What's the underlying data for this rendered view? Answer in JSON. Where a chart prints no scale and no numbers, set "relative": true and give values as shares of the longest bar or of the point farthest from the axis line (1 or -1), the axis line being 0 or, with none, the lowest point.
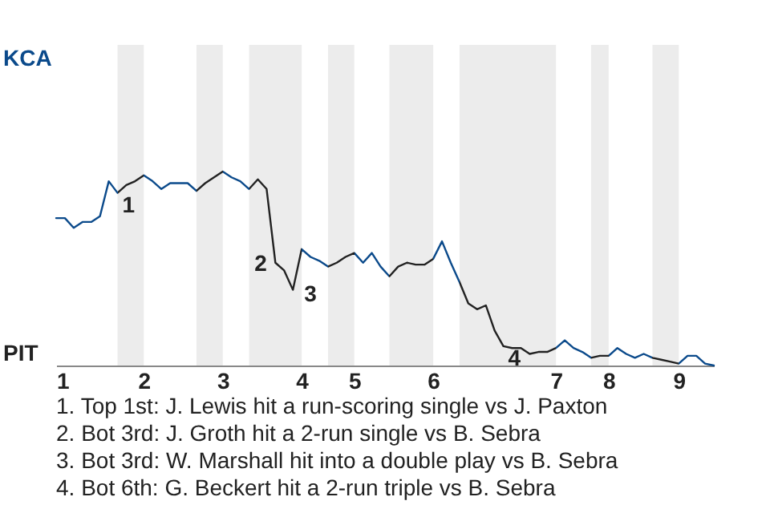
{
  "chart_data": {
    "type": "line",
    "relative": true,
    "categories": [
      "1",
      null,
      null,
      null,
      null,
      null,
      null,
      null,
      null,
      null,
      "2",
      null,
      null,
      null,
      null,
      null,
      null,
      null,
      null,
      "3",
      null,
      null,
      null,
      null,
      null,
      null,
      null,
      null,
      "4",
      null,
      null,
      null,
      null,
      null,
      "5",
      null,
      null,
      null,
      null,
      null,
      null,
      null,
      null,
      "6",
      null,
      null,
      null,
      null,
      null,
      null,
      null,
      null,
      null,
      null,
      null,
      null,
      null,
      "7",
      null,
      null,
      null,
      null,
      null,
      "8",
      null,
      null,
      null,
      null,
      null,
      null,
      null,
      "9",
      null,
      null,
      null,
      null
    ],
    "series": [
      {
        "color": "#0b4a8b",
        "values": [
          0.76,
          0.76,
          0.71,
          0.74,
          0.74,
          0.77,
          0.95,
          0.89,
          0.93,
          0.95,
          0.98,
          0.95,
          0.91,
          0.94,
          0.94,
          0.94,
          0.9,
          0.94,
          0.97,
          1,
          0.97,
          0.95,
          0.91,
          0.96,
          0.91,
          0.53,
          0.49,
          0.39,
          0.6,
          0.56,
          0.54,
          0.51,
          0.53,
          0.56,
          0.58,
          0.53,
          0.58,
          0.51,
          0.46,
          0.51,
          0.53,
          0.52,
          0.52,
          0.55,
          0.64,
          0.53,
          0.43,
          0.32,
          0.29,
          0.31,
          0.18,
          0.1,
          0.09,
          0.09,
          0.06,
          0.07,
          0.07,
          0.09,
          0.13,
          0.09,
          0.07,
          0.04,
          0.05,
          0.05,
          0.09,
          0.06,
          0.04,
          0.06,
          0.04,
          0.03,
          0.02,
          0.01,
          0.05,
          0.05,
          0.01,
          0
        ],
        "colors": [
          "#0b4a8b",
          "#0b4a8b",
          "#0b4a8b",
          "#0b4a8b",
          "#0b4a8b",
          "#0b4a8b",
          "#0b4a8b",
          "#222222",
          "#222222",
          "#222222",
          "#0b4a8b",
          "#0b4a8b",
          "#0b4a8b",
          "#0b4a8b",
          "#0b4a8b",
          "#0b4a8b",
          "#222222",
          "#222222",
          "#222222",
          "#0b4a8b",
          "#0b4a8b",
          "#0b4a8b",
          "#222222",
          "#222222",
          "#222222",
          "#222222",
          "#222222",
          "#222222",
          "#0b4a8b",
          "#0b4a8b",
          "#0b4a8b",
          "#222222",
          "#222222",
          "#222222",
          "#0b4a8b",
          "#0b4a8b",
          "#0b4a8b",
          "#0b4a8b",
          "#222222",
          "#222222",
          "#222222",
          "#222222",
          "#222222",
          "#0b4a8b",
          "#0b4a8b",
          "#0b4a8b",
          "#222222",
          "#222222",
          "#222222",
          "#222222",
          "#222222",
          "#222222",
          "#222222",
          "#222222",
          "#222222",
          "#222222",
          "#222222",
          "#0b4a8b",
          "#0b4a8b",
          "#0b4a8b",
          "#0b4a8b",
          "#222222",
          "#222222",
          "#0b4a8b",
          "#0b4a8b",
          "#0b4a8b",
          "#0b4a8b",
          "#0b4a8b",
          "#222222",
          "#222222",
          "#222222",
          "#0b4a8b",
          "#0b4a8b",
          "#0b4a8b",
          "#0b4a8b",
          "#0b4a8b"
        ]
      }
    ],
    "annotations": [
      "KCA",
      "PIT",
      "1",
      "2",
      "3",
      "4",
      "1. Top 1st: J. Lewis hit a run-scoring single vs J. Paxton",
      "2. Bot 3rd: J. Groth hit a 2-run single vs B. Sebra",
      "3. Bot 3rd: W. Marshall hit into a double play vs B. Sebra",
      "4. Bot 6th: G. Beckert hit a 2-run triple vs B. Sebra"
    ]
  }
}
